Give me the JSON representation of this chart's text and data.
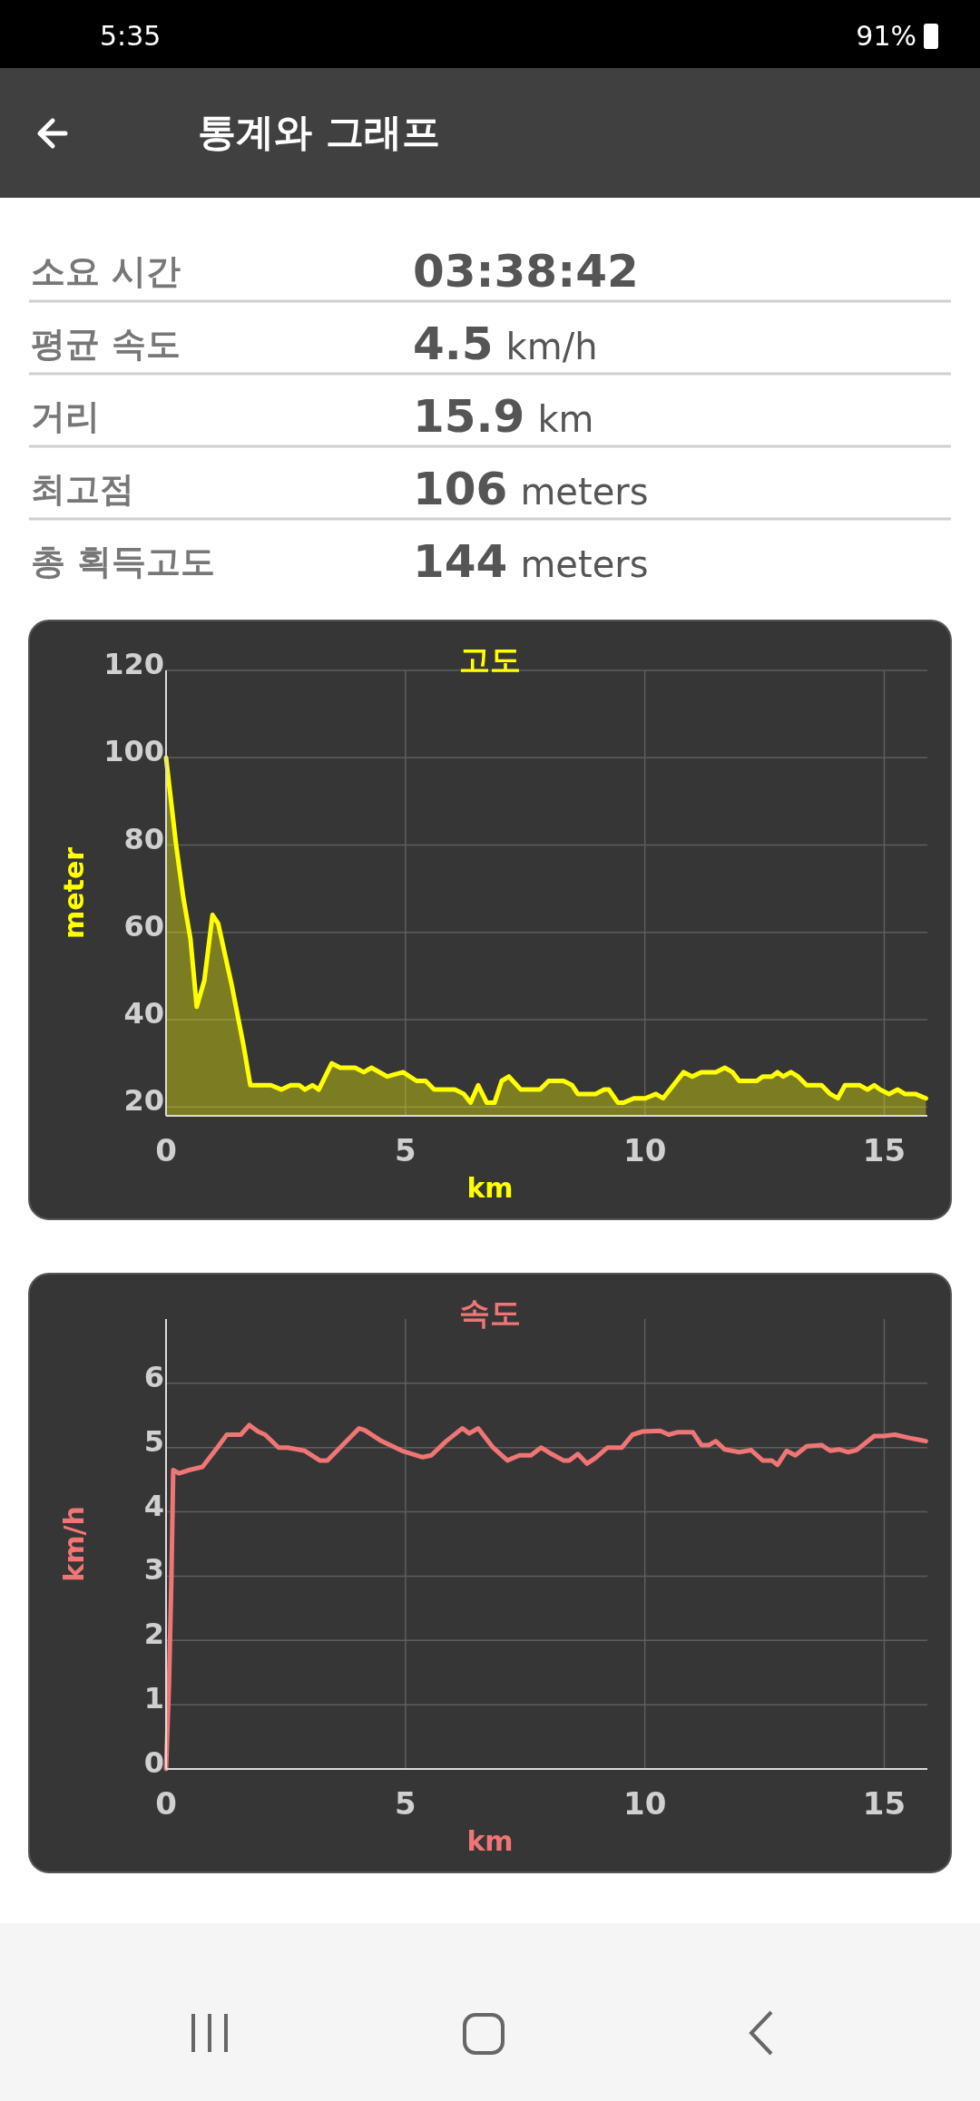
{
  "chart_data": [
    {
      "type": "other",
      "title": "통계와 그래프",
      "annotations": [
        "5:35",
        "91%",
        "소요 시간",
        "03:38:42",
        "평균 속도",
        "4.5",
        "km/h",
        "거리",
        "15.9",
        "km",
        "최고점",
        "106",
        "meters",
        "총 획득고도",
        "144",
        "meters"
      ]
    },
    {
      "type": "area",
      "title": "고도",
      "xlabel": "km",
      "ylabel": "meter",
      "grid": true,
      "xlim": [
        0,
        15.9
      ],
      "ylim": [
        18,
        120
      ],
      "xticks": [
        0,
        5,
        10,
        15
      ],
      "yticks": [
        20,
        40,
        60,
        80,
        100,
        120
      ],
      "series": [
        {
          "color": "#ffff00",
          "x": [
            0,
            0.21,
            0.36,
            0.51,
            0.64,
            0.8,
            0.97,
            1.09,
            1.37,
            1.62,
            1.76,
            2.19,
            2.41,
            2.6,
            2.78,
            2.9,
            3.06,
            3.19,
            3.46,
            3.64,
            3.95,
            4.13,
            4.29,
            4.62,
            4.95,
            5.23,
            5.42,
            5.6,
            6.03,
            6.22,
            6.36,
            6.52,
            6.7,
            6.86,
            7.01,
            7.16,
            7.41,
            7.81,
            7.99,
            8.3,
            8.48,
            8.6,
            8.97,
            9.15,
            9.25,
            9.44,
            9.55,
            9.77,
            10.01,
            10.23,
            10.38,
            10.81,
            10.99,
            11.18,
            11.48,
            11.67,
            11.83,
            11.97,
            12.34,
            12.46,
            12.65,
            12.77,
            12.89,
            13.05,
            13.2,
            13.38,
            13.69,
            13.87,
            14.03,
            14.18,
            14.49,
            14.65,
            14.79,
            14.91,
            15.1,
            15.28,
            15.43,
            15.65,
            15.87
          ],
          "values": [
            100,
            80,
            68,
            58.5,
            43,
            49,
            64,
            62,
            48,
            34,
            25,
            25,
            24,
            25,
            25,
            24,
            25,
            24,
            30,
            29,
            29,
            28,
            29,
            27,
            28,
            26,
            26,
            24,
            24,
            23,
            21,
            25,
            21,
            21,
            26,
            27,
            24,
            24,
            26,
            26,
            25,
            23,
            23,
            24,
            24,
            21,
            21,
            22,
            22,
            23,
            22,
            28,
            27,
            28,
            28,
            29,
            28,
            26,
            26,
            27,
            27,
            28,
            27,
            28,
            27,
            25,
            25,
            23,
            22,
            25,
            25,
            24,
            25,
            24,
            23,
            24,
            23,
            23,
            22
          ]
        }
      ]
    },
    {
      "type": "line",
      "title": "속도",
      "xlabel": "km",
      "ylabel": "km/h",
      "grid": true,
      "xlim": [
        0,
        15.9
      ],
      "ylim": [
        0,
        7
      ],
      "xticks": [
        0,
        5,
        10,
        15
      ],
      "yticks": [
        0,
        1,
        2,
        3,
        4,
        5,
        6
      ],
      "series": [
        {
          "color": "#f07575",
          "x": [
            0,
            0.06,
            0.11,
            0.15,
            0.27,
            0.48,
            0.76,
            1.07,
            1.27,
            1.56,
            1.74,
            1.92,
            2.07,
            2.35,
            2.54,
            2.9,
            3.21,
            3.37,
            3.7,
            4.03,
            4.15,
            4.5,
            4.93,
            5.36,
            5.54,
            5.85,
            6.19,
            6.33,
            6.52,
            6.83,
            7.13,
            7.38,
            7.62,
            7.83,
            8.05,
            8.3,
            8.42,
            8.6,
            8.79,
            8.97,
            9.22,
            9.52,
            9.74,
            9.95,
            10.32,
            10.5,
            10.69,
            11.0,
            11.18,
            11.34,
            11.48,
            11.67,
            11.97,
            12.22,
            12.46,
            12.65,
            12.77,
            12.96,
            13.14,
            13.38,
            13.69,
            13.87,
            14.06,
            14.24,
            14.42,
            14.79,
            14.98,
            15.22,
            15.53,
            15.87
          ],
          "values": [
            0,
            1.3,
            2.9,
            4.65,
            4.6,
            4.65,
            4.7,
            5.0,
            5.2,
            5.2,
            5.35,
            5.25,
            5.2,
            5.0,
            5.0,
            4.95,
            4.8,
            4.8,
            5.05,
            5.3,
            5.27,
            5.1,
            4.95,
            4.85,
            4.88,
            5.1,
            5.3,
            5.22,
            5.3,
            5.0,
            4.8,
            4.88,
            4.88,
            5.0,
            4.9,
            4.8,
            4.8,
            4.9,
            4.75,
            4.84,
            5.0,
            5.0,
            5.2,
            5.25,
            5.26,
            5.2,
            5.24,
            5.24,
            5.04,
            5.04,
            5.1,
            4.97,
            4.93,
            4.96,
            4.8,
            4.8,
            4.73,
            4.95,
            4.88,
            5.02,
            5.04,
            4.95,
            4.97,
            4.93,
            4.96,
            5.18,
            5.18,
            5.2,
            5.15,
            5.1
          ]
        }
      ]
    }
  ]
}
